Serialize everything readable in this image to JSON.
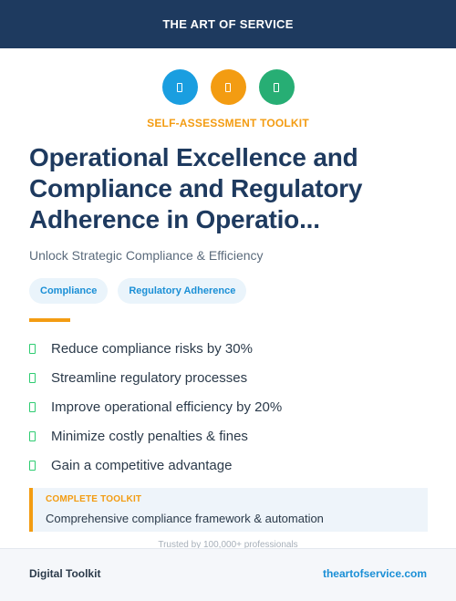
{
  "header": {
    "brand": "THE ART OF SERVICE"
  },
  "icons": [
    {
      "name": "blue-circle-icon",
      "color": "#1a9ee0"
    },
    {
      "name": "orange-circle-icon",
      "color": "#f39c12"
    },
    {
      "name": "green-circle-icon",
      "color": "#27ae74"
    }
  ],
  "kicker": "SELF-ASSESSMENT TOOLKIT",
  "title": {
    "line1": "Operational Excellence and",
    "line2": "Compliance and Regulatory",
    "line3": "Adherence in Operatio..."
  },
  "subtitle": "Unlock Strategic Compliance & Efficiency",
  "tags": [
    "Compliance",
    "Regulatory Adherence"
  ],
  "benefits": [
    "Reduce compliance risks by 30%",
    "Streamline regulatory processes",
    "Improve operational efficiency by 20%",
    "Minimize costly penalties & fines",
    "Gain a competitive advantage"
  ],
  "callout": {
    "label": "COMPLETE TOOLKIT",
    "description": "Comprehensive compliance framework & automation"
  },
  "trusted": "Trusted by 100,000+ professionals",
  "footer": {
    "left": "Digital Toolkit",
    "right": "theartofservice.com"
  },
  "colors": {
    "navy": "#1e3a5f",
    "accent": "#f39c12",
    "link": "#1a8fd6",
    "check": "#2ecc71"
  }
}
